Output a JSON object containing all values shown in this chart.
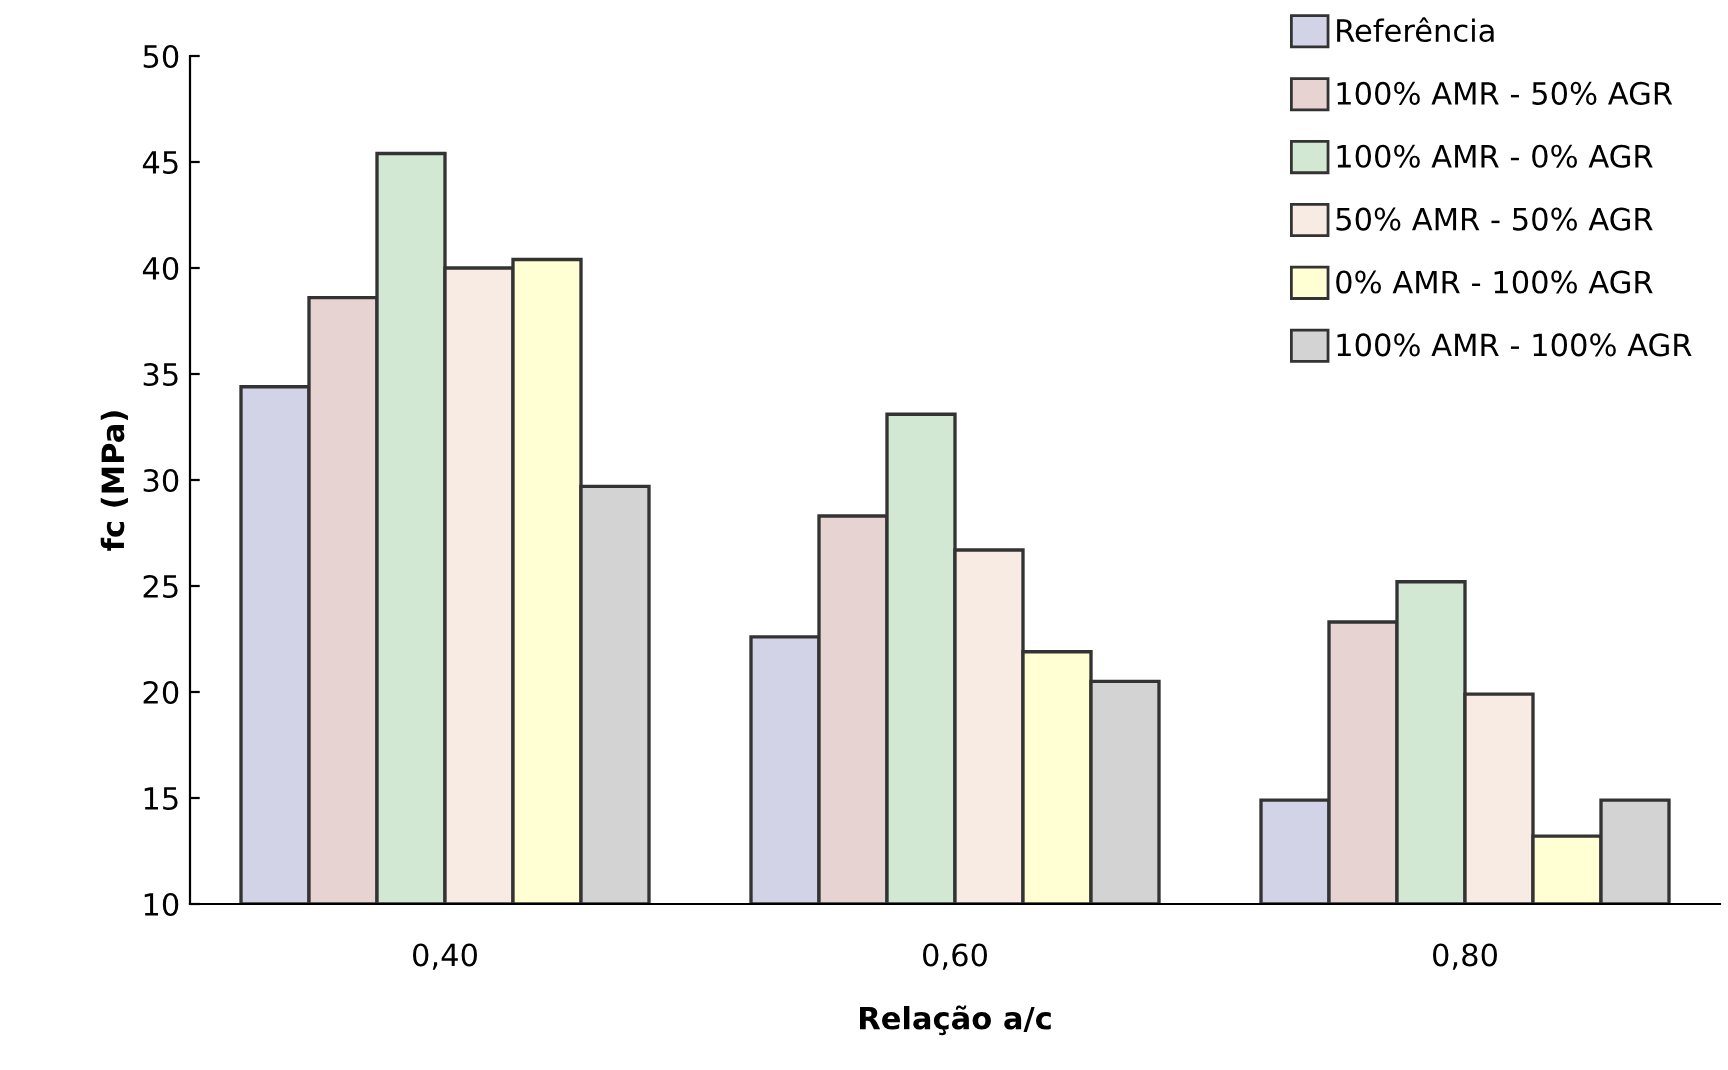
{
  "chart_data": {
    "type": "bar",
    "xlabel": "Relação a/c",
    "ylabel": "fc (MPa)",
    "categories": [
      "0,40",
      "0,60",
      "0,80"
    ],
    "series": [
      {
        "name": "Referência",
        "color": "#d3d3e8",
        "values": [
          34.4,
          22.6,
          14.9
        ]
      },
      {
        "name": "100% AMR - 50% AGR",
        "color": "#e8d3d3",
        "values": [
          38.6,
          28.3,
          23.3
        ]
      },
      {
        "name": "100% AMR - 0% AGR",
        "color": "#d3e8d3",
        "values": [
          45.4,
          33.1,
          25.2
        ]
      },
      {
        "name": "50% AMR - 50% AGR",
        "color": "#f7ebe3",
        "values": [
          40.0,
          26.7,
          19.9
        ]
      },
      {
        "name": "0% AMR - 100% AGR",
        "color": "#ffffd3",
        "values": [
          40.4,
          21.9,
          13.2
        ]
      },
      {
        "name": "100% AMR - 100% AGR",
        "color": "#d3d3d3",
        "values": [
          29.7,
          20.5,
          14.9
        ]
      }
    ],
    "ylim": [
      10,
      50
    ],
    "yticks": [
      10,
      15,
      20,
      25,
      30,
      35,
      40,
      45,
      50
    ],
    "grid": false,
    "legend": "top right"
  }
}
